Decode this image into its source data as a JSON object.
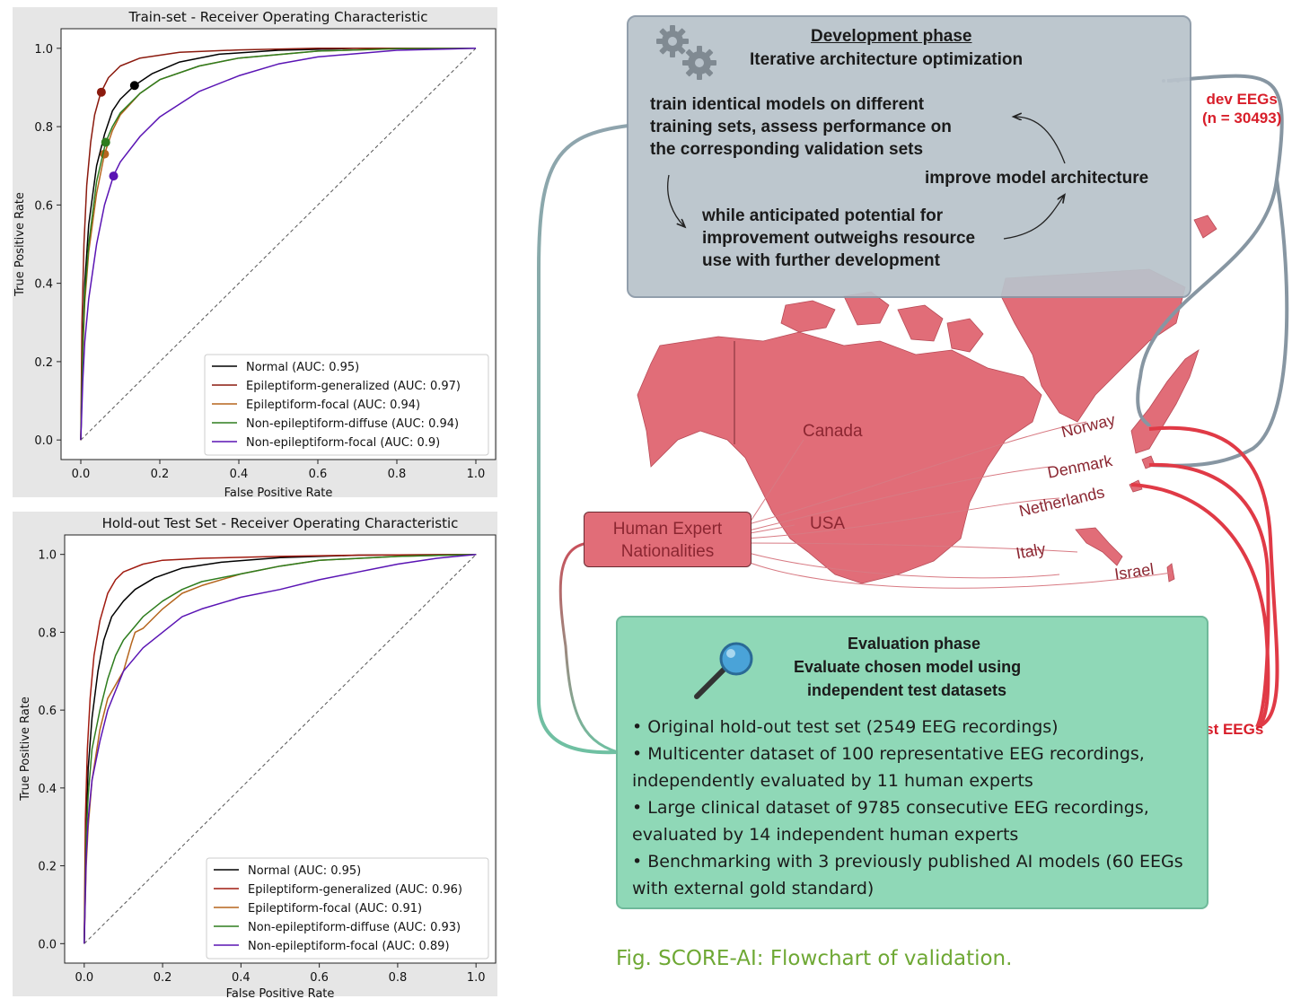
{
  "chart_data": [
    {
      "type": "line",
      "title": "Train-set - Receiver Operating Characteristic",
      "xlabel": "False Positive Rate",
      "ylabel": "True Positive Rate",
      "xlim": [
        -0.05,
        1.05
      ],
      "ylim": [
        -0.05,
        1.05
      ],
      "xticks": [
        "0.0",
        "0.2",
        "0.4",
        "0.6",
        "0.8",
        "1.0"
      ],
      "yticks": [
        "0.0",
        "0.2",
        "0.4",
        "0.6",
        "0.8",
        "1.0"
      ],
      "legend_position": "lower-right",
      "grid": false,
      "series": [
        {
          "name": "Normal (AUC: 0.95)",
          "color": "#000000",
          "x": [
            0,
            0.005,
            0.01,
            0.02,
            0.04,
            0.06,
            0.08,
            0.1,
            0.136,
            0.18,
            0.25,
            0.35,
            0.5,
            0.7,
            1.0
          ],
          "y": [
            0,
            0.25,
            0.4,
            0.55,
            0.7,
            0.78,
            0.84,
            0.87,
            0.905,
            0.935,
            0.965,
            0.985,
            0.995,
            1.0,
            1.0
          ],
          "operating_point": [
            0.136,
            0.905
          ]
        },
        {
          "name": "Epileptiform-generalized (AUC: 0.97)",
          "color": "#8b1a0e",
          "x": [
            0,
            0.003,
            0.008,
            0.015,
            0.025,
            0.035,
            0.05,
            0.07,
            0.1,
            0.15,
            0.25,
            0.4,
            0.6,
            1.0
          ],
          "y": [
            0,
            0.3,
            0.5,
            0.65,
            0.76,
            0.83,
            0.885,
            0.925,
            0.955,
            0.975,
            0.99,
            0.996,
            1.0,
            1.0
          ],
          "operating_point": [
            0.052,
            0.888
          ]
        },
        {
          "name": "Epileptiform-focal (AUC: 0.94)",
          "color": "#b5651d",
          "x": [
            0,
            0.005,
            0.01,
            0.02,
            0.04,
            0.06,
            0.08,
            0.1,
            0.15,
            0.2,
            0.3,
            0.4,
            0.6,
            0.8,
            1.0
          ],
          "y": [
            0,
            0.22,
            0.35,
            0.48,
            0.63,
            0.73,
            0.79,
            0.83,
            0.885,
            0.92,
            0.955,
            0.975,
            0.993,
            0.999,
            1.0
          ],
          "operating_point": [
            0.06,
            0.73
          ]
        },
        {
          "name": "Non-epileptiform-diffuse (AUC: 0.94)",
          "color": "#2e7d1e",
          "x": [
            0,
            0.005,
            0.01,
            0.02,
            0.04,
            0.063,
            0.08,
            0.1,
            0.15,
            0.2,
            0.3,
            0.4,
            0.6,
            0.8,
            1.0
          ],
          "y": [
            0,
            0.24,
            0.37,
            0.5,
            0.66,
            0.76,
            0.8,
            0.835,
            0.885,
            0.92,
            0.955,
            0.975,
            0.993,
            0.999,
            1.0
          ],
          "operating_point": [
            0.063,
            0.76
          ]
        },
        {
          "name": "Non-epileptiform-focal (AUC: 0.9)",
          "color": "#5a14b4",
          "x": [
            0,
            0.005,
            0.01,
            0.02,
            0.04,
            0.06,
            0.083,
            0.1,
            0.15,
            0.2,
            0.3,
            0.4,
            0.5,
            0.6,
            0.8,
            1.0
          ],
          "y": [
            0,
            0.15,
            0.25,
            0.36,
            0.5,
            0.6,
            0.675,
            0.71,
            0.775,
            0.825,
            0.89,
            0.93,
            0.96,
            0.978,
            0.995,
            1.0
          ],
          "operating_point": [
            0.083,
            0.674
          ]
        }
      ]
    },
    {
      "type": "line",
      "title": "Hold-out Test Set - Receiver Operating Characteristic",
      "xlabel": "False Positive Rate",
      "ylabel": "True Positive Rate",
      "xlim": [
        -0.05,
        1.05
      ],
      "ylim": [
        -0.05,
        1.05
      ],
      "xticks": [
        "0.0",
        "0.2",
        "0.4",
        "0.6",
        "0.8",
        "1.0"
      ],
      "yticks": [
        "0.0",
        "0.2",
        "0.4",
        "0.6",
        "0.8",
        "1.0"
      ],
      "legend_position": "lower-right",
      "grid": false,
      "series": [
        {
          "name": "Normal (AUC: 0.95)",
          "color": "#000000",
          "x": [
            0,
            0.005,
            0.01,
            0.02,
            0.035,
            0.05,
            0.07,
            0.1,
            0.13,
            0.18,
            0.25,
            0.35,
            0.5,
            0.7,
            1.0
          ],
          "y": [
            0,
            0.3,
            0.45,
            0.58,
            0.7,
            0.78,
            0.84,
            0.88,
            0.91,
            0.94,
            0.965,
            0.98,
            0.992,
            0.998,
            1.0
          ]
        },
        {
          "name": "Epileptiform-generalized (AUC: 0.96)",
          "color": "#a01b10",
          "x": [
            0,
            0.003,
            0.008,
            0.015,
            0.025,
            0.04,
            0.06,
            0.08,
            0.1,
            0.15,
            0.2,
            0.3,
            0.5,
            0.7,
            1.0
          ],
          "y": [
            0,
            0.32,
            0.5,
            0.63,
            0.74,
            0.83,
            0.9,
            0.935,
            0.955,
            0.975,
            0.985,
            0.99,
            0.995,
            0.998,
            1.0
          ]
        },
        {
          "name": "Epileptiform-focal (AUC: 0.91)",
          "color": "#b5651d",
          "x": [
            0,
            0.005,
            0.01,
            0.02,
            0.04,
            0.06,
            0.1,
            0.12,
            0.13,
            0.15,
            0.2,
            0.25,
            0.3,
            0.4,
            0.5,
            0.6,
            0.8,
            1.0
          ],
          "y": [
            0,
            0.2,
            0.3,
            0.42,
            0.55,
            0.63,
            0.7,
            0.77,
            0.8,
            0.81,
            0.86,
            0.9,
            0.92,
            0.95,
            0.97,
            0.985,
            0.995,
            1.0
          ]
        },
        {
          "name": "Non-epileptiform-diffuse (AUC: 0.93)",
          "color": "#2e7d1e",
          "x": [
            0,
            0.005,
            0.01,
            0.02,
            0.04,
            0.06,
            0.08,
            0.1,
            0.15,
            0.2,
            0.25,
            0.3,
            0.4,
            0.5,
            0.6,
            0.8,
            1.0
          ],
          "y": [
            0,
            0.28,
            0.38,
            0.5,
            0.6,
            0.68,
            0.74,
            0.78,
            0.84,
            0.88,
            0.91,
            0.93,
            0.95,
            0.97,
            0.985,
            0.995,
            1.0
          ]
        },
        {
          "name": "Non-epileptiform-focal (AUC: 0.89)",
          "color": "#5a14b4",
          "x": [
            0,
            0.005,
            0.01,
            0.02,
            0.04,
            0.06,
            0.1,
            0.15,
            0.2,
            0.25,
            0.3,
            0.4,
            0.5,
            0.6,
            0.7,
            0.8,
            0.9,
            1.0
          ],
          "y": [
            0,
            0.22,
            0.32,
            0.42,
            0.52,
            0.6,
            0.7,
            0.76,
            0.8,
            0.84,
            0.86,
            0.89,
            0.91,
            0.935,
            0.955,
            0.975,
            0.99,
            1.0
          ]
        }
      ]
    }
  ],
  "diagram": {
    "dev_phase": {
      "heading": "Development phase",
      "subheading": "Iterative architecture optimization",
      "train_lines": [
        "train identical models on different",
        "training sets, assess performance on",
        "the corresponding validation sets"
      ],
      "improve": "improve model architecture",
      "while_lines": [
        "while anticipated potential for",
        "improvement outweighs resource",
        "use with further development"
      ]
    },
    "dev_eegs": [
      "dev EEGs",
      "(n = 30493)"
    ],
    "test_eegs": "test EEGs",
    "experts": [
      "Human Expert",
      "Nationalities"
    ],
    "countries": {
      "canada": "Canada",
      "usa": "USA",
      "norway": "Norway",
      "denmark": "Denmark",
      "netherlands": "Netherlands",
      "italy": "Italy",
      "israel": "Israel"
    },
    "eval_phase": {
      "heading": "Evaluation phase",
      "sub1": "Evaluate chosen model using",
      "sub2": "independent test datasets",
      "b1": "• Original hold-out test set (2549 EEG recordings)",
      "b2a": "• Multicenter dataset of 100 representative EEG recordings,",
      "b2b": "independently evaluated by 11 human experts",
      "b3a": "• Large clinical dataset of 9785 consecutive EEG recordings,",
      "b3b": "evaluated by 14 independent human experts",
      "b4a": "• Benchmarking with 3 previously published AI models (60 EEGs",
      "b4b": "with external gold standard)"
    },
    "caption": "Fig. SCORE-AI: Flowchart of validation.",
    "colors": {
      "map": "#e16d78",
      "dev_box": "#b9c3cb",
      "eval_box": "#8fd8b7",
      "caption": "#6ea834",
      "label_red": "#d81e2a"
    }
  }
}
